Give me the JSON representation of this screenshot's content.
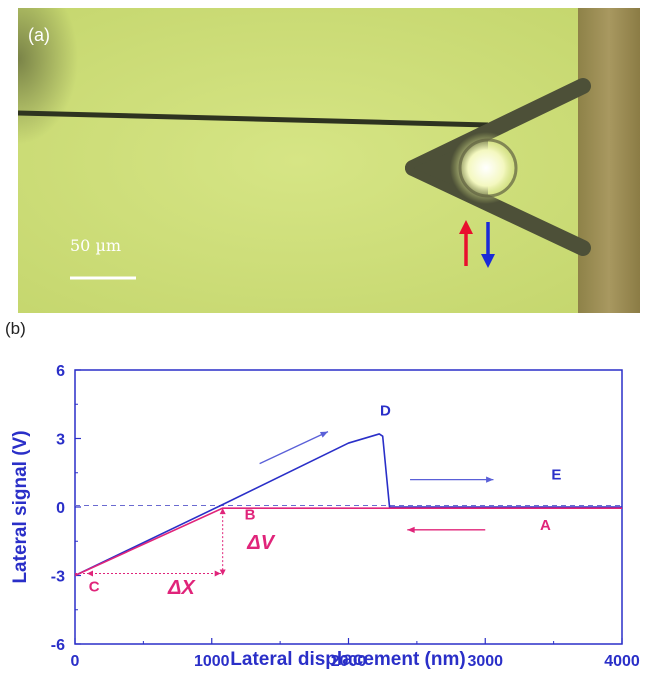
{
  "panel_a": {
    "label": "(a)",
    "scale_text": "50 µm",
    "colors": {
      "background": "#cfe07a",
      "substrate": "#9a8a55",
      "cantilever": "#4d5038",
      "tip_fiber": "#2e3320",
      "arrow_up": "#e8102e",
      "arrow_down": "#1a2ad8"
    },
    "icons": [
      "cantilever-triangle",
      "fiber-probe",
      "up-arrow-icon",
      "down-arrow-icon"
    ]
  },
  "panel_b": {
    "label": "(b)"
  },
  "chart_data": {
    "type": "line",
    "xlabel": "Lateral displacement (nm)",
    "ylabel": "Lateral signal (V)",
    "xlim": [
      0,
      4000
    ],
    "ylim": [
      -6,
      6
    ],
    "x_ticks": [
      0,
      1000,
      2000,
      3000,
      4000
    ],
    "y_ticks": [
      -6,
      -3,
      0,
      3,
      6
    ],
    "grid": false,
    "legend": "none",
    "series": [
      {
        "color": "#2a2fc8",
        "x": [
          0,
          1060,
          2000,
          2225,
          2250,
          2300,
          4000
        ],
        "y": [
          -3.0,
          0.05,
          2.8,
          3.2,
          3.1,
          0.0,
          0.0
        ]
      },
      {
        "color": "#e0247a",
        "x": [
          4000,
          1080,
          0
        ],
        "y": [
          -0.05,
          -0.05,
          -3.0
        ]
      }
    ],
    "zero_line": {
      "color": "#6a6ad0",
      "style": "dashed"
    },
    "annotations": {
      "points": [
        {
          "text": "D",
          "x": 2270,
          "y": 4.0,
          "color": "#2a2fc8"
        },
        {
          "text": "E",
          "x": 3520,
          "y": 1.2,
          "color": "#2a2fc8"
        },
        {
          "text": "B",
          "x": 1280,
          "y": -0.55,
          "color": "#e0247a"
        },
        {
          "text": "A",
          "x": 3440,
          "y": -1.0,
          "color": "#e0247a"
        },
        {
          "text": "C",
          "x": 140,
          "y": -3.7,
          "color": "#e0247a"
        }
      ],
      "deltas": [
        {
          "text": "ΔV",
          "x": 1260,
          "y": -1.85,
          "color": "#e0247a"
        },
        {
          "text": "ΔX",
          "x": 680,
          "y": -3.8,
          "color": "#e0247a"
        }
      ],
      "arrows": [
        {
          "x1": 1350,
          "y1": 1.9,
          "x2": 1850,
          "y2": 3.3,
          "color": "#5a60d8"
        },
        {
          "x1": 2450,
          "y1": 1.2,
          "x2": 3060,
          "y2": 1.2,
          "color": "#5a60d8"
        },
        {
          "x1": 3000,
          "y1": -1.0,
          "x2": 2430,
          "y2": -1.0,
          "color": "#e0247a"
        }
      ]
    }
  }
}
